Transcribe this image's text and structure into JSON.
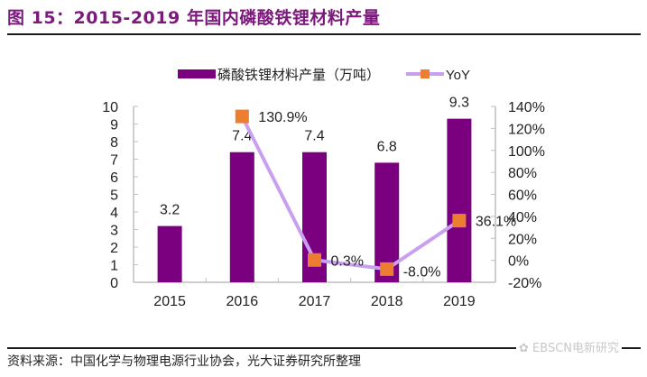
{
  "title": "图 15：2015-2019 年国内磷酸铁锂材料产量",
  "source": "资料来源：中国化学与物理电源行业协会，光大证券研究所整理",
  "watermark": "EBSCN电新研究",
  "colors": {
    "title": "#7b1a7b",
    "bar": "#7b0080",
    "line": "#c9a0f0",
    "marker": "#ed7d31",
    "axis": "#bfbfbf",
    "text": "#222222"
  },
  "chart_data": {
    "type": "bar",
    "title": "2015-2019 年国内磷酸铁锂材料产量",
    "categories": [
      "2015",
      "2016",
      "2017",
      "2018",
      "2019"
    ],
    "series": [
      {
        "name": "磷酸铁锂材料产量（万吨）",
        "type": "bar",
        "axis": "left",
        "values": [
          3.2,
          7.4,
          7.4,
          6.8,
          9.3
        ],
        "labels": [
          "3.2",
          "7.4",
          "7.4",
          "6.8",
          "9.3"
        ]
      },
      {
        "name": "YoY",
        "type": "line",
        "axis": "right",
        "values": [
          null,
          130.9,
          0.3,
          -8.0,
          36.1
        ],
        "labels": [
          "",
          "130.9%",
          "0.3%",
          "-8.0%",
          "36.1%"
        ]
      }
    ],
    "left_axis": {
      "range": [
        0,
        10
      ],
      "ticks": [
        "0",
        "1",
        "2",
        "3",
        "4",
        "5",
        "6",
        "7",
        "8",
        "9",
        "10"
      ]
    },
    "right_axis": {
      "range": [
        -20,
        140
      ],
      "ticks": [
        "-20%",
        "0%",
        "20%",
        "40%",
        "60%",
        "80%",
        "100%",
        "120%",
        "140%"
      ]
    },
    "xlabel": "",
    "ylabel": "",
    "legend_position": "top",
    "grid": false
  }
}
